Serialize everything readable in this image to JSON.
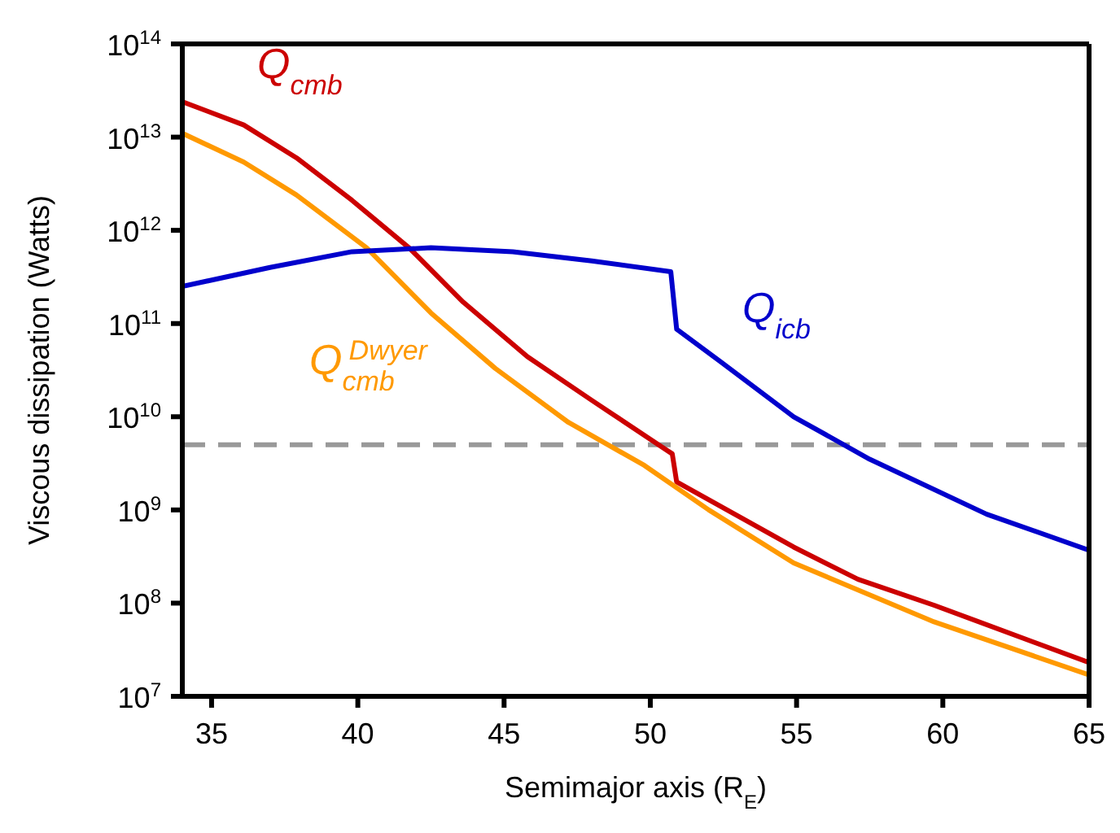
{
  "chart_data": {
    "type": "line",
    "xlabel": "Semimajor axis (R$_{E}$)",
    "ylabel": "Viscous dissipation (Watts)",
    "log": "y",
    "xlim": [
      34,
      65
    ],
    "xticks": [
      35,
      40,
      45,
      50,
      55,
      60,
      65
    ],
    "ylim": [
      10000000.0,
      100000000000000.0
    ],
    "yticks": [
      {
        "value": 10000000.0,
        "label": "10$^{7}$"
      },
      {
        "value": 100000000.0,
        "label": "10$^{8}$"
      },
      {
        "value": 1000000000.0,
        "label": "10$^{9}$"
      },
      {
        "value": 10000000000.0,
        "label": "10$^{10}$"
      },
      {
        "value": 100000000000.0,
        "label": "10$^{11}$"
      },
      {
        "value": 1000000000000.0,
        "label": "10$^{12}$"
      },
      {
        "value": 10000000000000.0,
        "label": "10$^{13}$"
      },
      {
        "value": 100000000000000.0,
        "label": "10$^{14}$"
      }
    ],
    "marker": "none",
    "line_style": "solid",
    "ref_lines": [
      {
        "axis": "y",
        "value": 5000000000.0,
        "color": "#999999",
        "line_style": "dashed"
      }
    ],
    "series": [
      {
        "name": "Q$_{cmb}$",
        "color": "#cc0000",
        "x": [
          34,
          36.1,
          37.9,
          39.8,
          41.75,
          43.6,
          45.8,
          48,
          50.5,
          50.75,
          50.9,
          54.9,
          57.1,
          59.7,
          65
        ],
        "values": [
          24000000000000.0,
          13500000000000.0,
          6000000000000.0,
          2100000000000.0,
          650000000000.0,
          170000000000.0,
          44000000000.0,
          15000000000.0,
          4500000000.0,
          4000000000.0,
          2000000000.0,
          400000000.0,
          180000000.0,
          95000000.0,
          23000000.0
        ]
      },
      {
        "name": "Q$_{cmb}$$^{Dwyer}$",
        "color": "#ff9900",
        "x": [
          34,
          36.1,
          37.9,
          40.3,
          42.5,
          44.7,
          47.2,
          49.8,
          52,
          54.9,
          59.7,
          65
        ],
        "values": [
          11000000000000.0,
          5400000000000.0,
          2400000000000.0,
          650000000000.0,
          130000000000.0,
          33000000000.0,
          8700000000.0,
          3000000000.0,
          1000000000.0,
          270000000.0,
          63000000.0,
          17000000.0
        ]
      },
      {
        "name": "Q$_{icb}$",
        "color": "#0000cc",
        "x": [
          34,
          37,
          39.8,
          42.5,
          45.3,
          48,
          50.7,
          50.9,
          52.4,
          54.9,
          57.5,
          61.5,
          65
        ],
        "values": [
          250000000000.0,
          400000000000.0,
          590000000000.0,
          650000000000.0,
          590000000000.0,
          470000000000.0,
          360000000000.0,
          87000000000.0,
          39000000000.0,
          10000000000.0,
          3500000000.0,
          900000000.0,
          370000000.0
        ]
      }
    ]
  }
}
